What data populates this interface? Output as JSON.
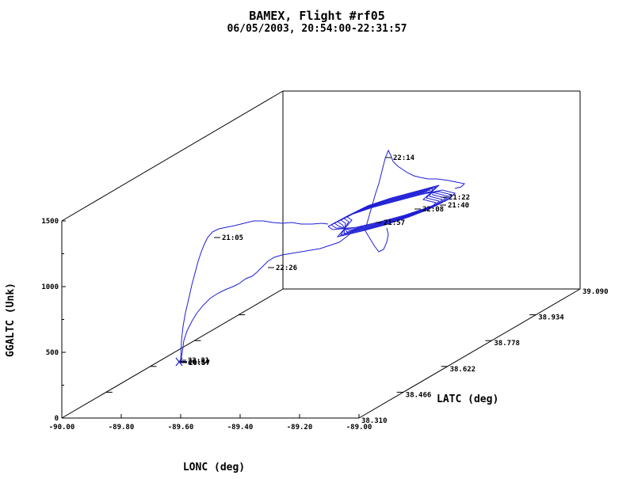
{
  "chart_data": {
    "type": "line",
    "projection": "3d",
    "title": "BAMEX, Flight #rf05",
    "subtitle": "06/05/2003, 20:54:00-22:31:57",
    "xlabel": "LONC (deg)",
    "ylabel": "LATC (deg)",
    "zlabel": "GGALTC (Unk)",
    "xlim": [
      -90.0,
      -89.0
    ],
    "ylim": [
      38.31,
      39.09
    ],
    "zlim": [
      0,
      1500
    ],
    "x_ticks": [
      "-90.00",
      "-89.80",
      "-89.60",
      "-89.40",
      "-89.20",
      "-89.00"
    ],
    "y_ticks": [
      "38.310",
      "38.466",
      "38.622",
      "38.778",
      "38.934",
      "39.090"
    ],
    "z_ticks": [
      "0",
      "500",
      "1000",
      "1500"
    ],
    "line_color": "#1f1fd6",
    "grid": false,
    "time_labels": [
      {
        "text": "20:54",
        "lon": -89.57,
        "lat": 38.31,
        "alt": 440
      },
      {
        "text": "20:57",
        "lon": -89.58,
        "lat": 38.31,
        "alt": 435
      },
      {
        "text": "21:05",
        "lon": -89.21,
        "lat": 38.78,
        "alt": 1560
      },
      {
        "text": "21:22",
        "lon": -89.06,
        "lat": 39.0,
        "alt": 1570
      },
      {
        "text": "21:40",
        "lon": -89.1,
        "lat": 38.97,
        "alt": 1540
      },
      {
        "text": "21:57",
        "lon": -89.3,
        "lat": 38.93,
        "alt": 1480
      },
      {
        "text": "22:08",
        "lon": -89.13,
        "lat": 38.96,
        "alt": 1515
      },
      {
        "text": "22:14",
        "lon": -89.17,
        "lat": 38.85,
        "alt": 1840
      },
      {
        "text": "22:26",
        "lon": -89.36,
        "lat": 38.56,
        "alt": 1350
      },
      {
        "text": "22:31",
        "lon": -89.57,
        "lat": 38.31,
        "alt": 432
      }
    ]
  }
}
